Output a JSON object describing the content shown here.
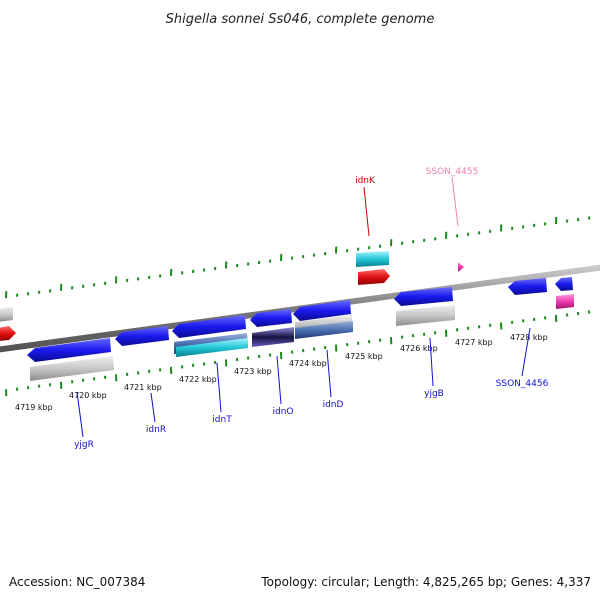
{
  "title": "Shigella sonnei Ss046, complete genome",
  "footer": {
    "accession": "Accession: NC_007384",
    "summary": "Topology: circular; Length: 4,825,265 bp; Genes: 4,337"
  },
  "colors": {
    "backbone": "#8a8a8a",
    "tick": "#1a8a1a",
    "forward_gene": "#1a1aee",
    "forward_rna": "#c8c8c8",
    "reverse_gene": "#e01010",
    "reverse_rna": "#22c8d8",
    "pseudo": "#f060c0",
    "label_blue": "#1010cc",
    "label_red": "#cc0000",
    "label_pink": "#f080b0"
  },
  "ticks": {
    "kbp_labels": [
      "4719 kbp",
      "4720 kbp",
      "4721 kbp",
      "4722 kbp",
      "4723 kbp",
      "4724 kbp",
      "4725 kbp",
      "4726 kbp",
      "4727 kbp",
      "4728 kbp"
    ]
  },
  "genes": {
    "yjgR": "yjgR",
    "idnR": "idnR",
    "idnT": "idnT",
    "idnO": "idnO",
    "idnD": "idnD",
    "yjgB": "yjgB",
    "ssonA": "SSON_4456",
    "idnK": "idnK",
    "ssonB": "SSON_4455"
  }
}
